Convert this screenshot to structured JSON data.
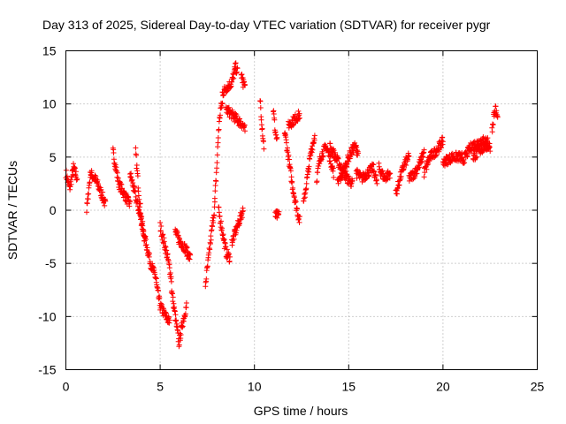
{
  "chart_data": {
    "type": "scatter",
    "title": "Day 313 of 2025, Sidereal Day-to-day VTEC variation (SDTVAR) for receiver pygr",
    "xlabel": "GPS time / hours",
    "ylabel": "SDTVAR / TECUs",
    "xlim": [
      0,
      25
    ],
    "ylim": [
      -15,
      15
    ],
    "xticks": [
      0,
      5,
      10,
      15,
      20,
      25
    ],
    "yticks": [
      -15,
      -10,
      -5,
      0,
      5,
      10,
      15
    ],
    "xtick_labels": [
      "0",
      "5",
      "10",
      "15",
      "20",
      "25"
    ],
    "ytick_labels": [
      "-15",
      "-10",
      "-5",
      "0",
      "5",
      "10",
      "15"
    ],
    "grid": true,
    "marker": "+",
    "color": "#ff0000",
    "segments": [
      {
        "x0": 0.0,
        "x1": 0.6,
        "y": [
          [
            0.0,
            3.5
          ],
          [
            0.2,
            2.0
          ],
          [
            0.4,
            4.0
          ],
          [
            0.6,
            3.0
          ]
        ]
      },
      {
        "x0": 1.1,
        "x1": 2.1,
        "y": [
          [
            1.1,
            0.0
          ],
          [
            1.3,
            3.5
          ],
          [
            1.6,
            2.8
          ],
          [
            1.9,
            1.5
          ],
          [
            2.1,
            0.5
          ]
        ]
      },
      {
        "x0": 2.5,
        "x1": 3.4,
        "y": [
          [
            2.5,
            5.5
          ],
          [
            2.8,
            2.5
          ],
          [
            3.1,
            1.5
          ],
          [
            3.4,
            0.5
          ]
        ]
      },
      {
        "x0": 3.4,
        "x1": 4.2,
        "y": [
          [
            3.4,
            3.5
          ],
          [
            3.6,
            2.0
          ],
          [
            3.8,
            0.5
          ],
          [
            4.0,
            -1.0
          ],
          [
            4.2,
            -3.0
          ]
        ]
      },
      {
        "x0": 3.7,
        "x1": 4.8,
        "y": [
          [
            3.7,
            5.5
          ],
          [
            3.9,
            1.0
          ],
          [
            4.1,
            -2.0
          ],
          [
            4.3,
            -3.5
          ],
          [
            4.5,
            -5.0
          ],
          [
            4.8,
            -6.5
          ]
        ]
      },
      {
        "x0": 4.8,
        "x1": 5.5,
        "y": [
          [
            4.8,
            -7.0
          ],
          [
            5.0,
            -9.0
          ],
          [
            5.3,
            -10.0
          ],
          [
            5.5,
            -10.5
          ]
        ]
      },
      {
        "x0": 5.0,
        "x1": 5.6,
        "y": [
          [
            5.0,
            -1.5
          ],
          [
            5.2,
            -3.0
          ],
          [
            5.4,
            -4.5
          ],
          [
            5.6,
            -6.5
          ]
        ]
      },
      {
        "x0": 5.6,
        "x1": 6.4,
        "y": [
          [
            5.6,
            -7.5
          ],
          [
            5.8,
            -10.0
          ],
          [
            6.0,
            -12.5
          ],
          [
            6.2,
            -10.5
          ],
          [
            6.4,
            -9.0
          ]
        ]
      },
      {
        "x0": 5.8,
        "x1": 6.6,
        "y": [
          [
            5.8,
            -2.0
          ],
          [
            6.0,
            -2.8
          ],
          [
            6.3,
            -3.5
          ],
          [
            6.6,
            -4.5
          ]
        ]
      },
      {
        "x0": 7.4,
        "x1": 7.9,
        "y": [
          [
            7.4,
            -7.0
          ],
          [
            7.6,
            -4.0
          ],
          [
            7.8,
            -1.0
          ],
          [
            7.9,
            0.5
          ]
        ]
      },
      {
        "x0": 7.9,
        "x1": 8.3,
        "y": [
          [
            7.9,
            1.0
          ],
          [
            8.0,
            4.0
          ],
          [
            8.1,
            7.5
          ],
          [
            8.2,
            9.5
          ],
          [
            8.3,
            10.0
          ]
        ]
      },
      {
        "x0": 8.3,
        "x1": 9.1,
        "y": [
          [
            8.3,
            11.0
          ],
          [
            8.5,
            11.5
          ],
          [
            8.8,
            12.0
          ],
          [
            9.0,
            13.5
          ],
          [
            9.1,
            13.0
          ]
        ]
      },
      {
        "x0": 8.5,
        "x1": 9.5,
        "y": [
          [
            8.5,
            9.5
          ],
          [
            8.8,
            9.0
          ],
          [
            9.1,
            8.5
          ],
          [
            9.4,
            8.0
          ],
          [
            9.5,
            7.5
          ]
        ]
      },
      {
        "x0": 8.1,
        "x1": 8.7,
        "y": [
          [
            8.1,
            0.0
          ],
          [
            8.3,
            -2.0
          ],
          [
            8.5,
            -4.0
          ],
          [
            8.7,
            -4.5
          ]
        ]
      },
      {
        "x0": 8.8,
        "x1": 9.4,
        "y": [
          [
            8.8,
            -3.0
          ],
          [
            9.0,
            -2.0
          ],
          [
            9.2,
            -1.0
          ],
          [
            9.4,
            0.0
          ]
        ]
      },
      {
        "x0": 9.3,
        "x1": 9.5,
        "y": [
          [
            9.3,
            13.0
          ],
          [
            9.4,
            12.0
          ],
          [
            9.5,
            11.5
          ]
        ]
      },
      {
        "x0": 10.3,
        "x1": 10.5,
        "y": [
          [
            10.3,
            10.5
          ],
          [
            10.4,
            8.0
          ],
          [
            10.5,
            6.0
          ]
        ]
      },
      {
        "x0": 11.0,
        "x1": 11.2,
        "y": [
          [
            11.0,
            9.5
          ],
          [
            11.1,
            7.5
          ],
          [
            11.2,
            6.5
          ]
        ]
      },
      {
        "x0": 11.1,
        "x1": 11.3,
        "y": [
          [
            11.1,
            -0.5
          ],
          [
            11.3,
            -0.5
          ]
        ]
      },
      {
        "x0": 11.6,
        "x1": 12.4,
        "y": [
          [
            11.6,
            7.5
          ],
          [
            11.8,
            5.0
          ],
          [
            12.0,
            2.5
          ],
          [
            12.2,
            0.5
          ],
          [
            12.4,
            -1.0
          ]
        ]
      },
      {
        "x0": 11.8,
        "x1": 12.4,
        "y": [
          [
            11.8,
            8.0
          ],
          [
            12.1,
            8.5
          ],
          [
            12.4,
            9.0
          ]
        ]
      },
      {
        "x0": 12.6,
        "x1": 13.2,
        "y": [
          [
            12.6,
            0.5
          ],
          [
            12.8,
            3.0
          ],
          [
            13.0,
            5.5
          ],
          [
            13.2,
            7.0
          ]
        ]
      },
      {
        "x0": 13.3,
        "x1": 14.2,
        "y": [
          [
            13.3,
            3.0
          ],
          [
            13.5,
            5.0
          ],
          [
            13.8,
            6.0
          ],
          [
            14.0,
            5.0
          ],
          [
            14.2,
            3.5
          ]
        ]
      },
      {
        "x0": 14.0,
        "x1": 15.2,
        "y": [
          [
            14.0,
            6.0
          ],
          [
            14.3,
            5.0
          ],
          [
            14.6,
            4.0
          ],
          [
            14.9,
            3.0
          ],
          [
            15.2,
            2.5
          ]
        ]
      },
      {
        "x0": 14.4,
        "x1": 15.5,
        "y": [
          [
            14.4,
            2.5
          ],
          [
            14.7,
            3.5
          ],
          [
            15.0,
            5.0
          ],
          [
            15.3,
            6.0
          ],
          [
            15.5,
            5.5
          ]
        ]
      },
      {
        "x0": 15.4,
        "x1": 16.5,
        "y": [
          [
            15.4,
            3.5
          ],
          [
            15.7,
            3.0
          ],
          [
            16.0,
            3.5
          ],
          [
            16.3,
            4.0
          ],
          [
            16.5,
            2.5
          ]
        ]
      },
      {
        "x0": 16.6,
        "x1": 17.2,
        "y": [
          [
            16.6,
            4.0
          ],
          [
            16.9,
            3.0
          ],
          [
            17.2,
            3.5
          ]
        ]
      },
      {
        "x0": 17.5,
        "x1": 18.2,
        "y": [
          [
            17.5,
            1.5
          ],
          [
            17.8,
            3.5
          ],
          [
            18.0,
            4.5
          ],
          [
            18.2,
            5.0
          ]
        ]
      },
      {
        "x0": 18.2,
        "x1": 19.0,
        "y": [
          [
            18.2,
            3.0
          ],
          [
            18.5,
            3.5
          ],
          [
            18.8,
            4.5
          ],
          [
            19.0,
            5.5
          ]
        ]
      },
      {
        "x0": 19.0,
        "x1": 20.0,
        "y": [
          [
            19.0,
            3.5
          ],
          [
            19.3,
            5.0
          ],
          [
            19.6,
            5.5
          ],
          [
            20.0,
            6.5
          ]
        ]
      },
      {
        "x0": 20.0,
        "x1": 21.0,
        "y": [
          [
            20.0,
            4.5
          ],
          [
            20.5,
            5.0
          ],
          [
            21.0,
            5.0
          ]
        ]
      },
      {
        "x0": 21.0,
        "x1": 22.4,
        "y": [
          [
            21.0,
            4.5
          ],
          [
            21.5,
            6.0
          ],
          [
            22.0,
            6.5
          ],
          [
            22.4,
            6.5
          ]
        ]
      },
      {
        "x0": 21.6,
        "x1": 22.5,
        "y": [
          [
            21.6,
            5.0
          ],
          [
            21.9,
            5.5
          ],
          [
            22.2,
            6.0
          ],
          [
            22.5,
            6.0
          ]
        ]
      },
      {
        "x0": 22.6,
        "x1": 22.9,
        "y": [
          [
            22.6,
            7.5
          ],
          [
            22.7,
            9.0
          ],
          [
            22.8,
            9.5
          ],
          [
            22.9,
            8.5
          ]
        ]
      }
    ]
  }
}
